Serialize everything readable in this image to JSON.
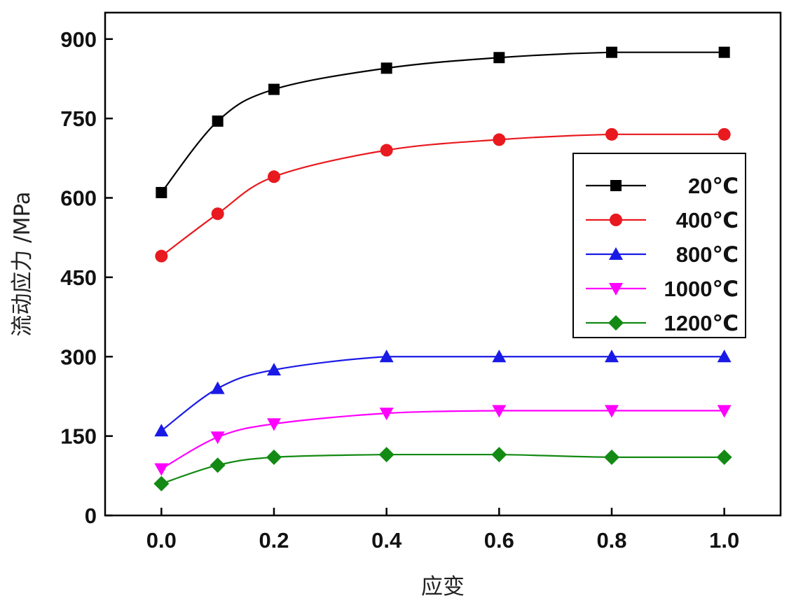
{
  "chart_data": {
    "type": "line",
    "xlabel": "应变",
    "ylabel": "流动应力 /MPa",
    "xlim": [
      -0.1,
      1.1
    ],
    "ylim": [
      0,
      950
    ],
    "xticks": [
      "0.0",
      "0.2",
      "0.4",
      "0.6",
      "0.8",
      "1.0"
    ],
    "yticks": [
      "0",
      "150",
      "300",
      "450",
      "600",
      "750",
      "900"
    ],
    "grid": false,
    "legend_position": "right",
    "x": [
      0.0,
      0.1,
      0.2,
      0.4,
      0.6,
      0.8,
      1.0
    ],
    "series": [
      {
        "name": "20℃",
        "color": "#000000",
        "marker": "square",
        "values": [
          610,
          745,
          805,
          845,
          865,
          875,
          875
        ]
      },
      {
        "name": "400℃",
        "color": "#e8191f",
        "marker": "circle",
        "values": [
          490,
          570,
          640,
          690,
          710,
          720,
          720
        ]
      },
      {
        "name": "800℃",
        "color": "#1a1ae6",
        "marker": "triangle-up",
        "values": [
          160,
          240,
          275,
          300,
          300,
          300,
          300
        ]
      },
      {
        "name": "1000℃",
        "color": "#ff00ff",
        "marker": "triangle-down",
        "values": [
          88,
          148,
          173,
          193,
          198,
          198,
          198
        ]
      },
      {
        "name": "1200℃",
        "color": "#138a13",
        "marker": "diamond",
        "values": [
          60,
          95,
          110,
          115,
          115,
          110,
          110
        ]
      }
    ]
  }
}
